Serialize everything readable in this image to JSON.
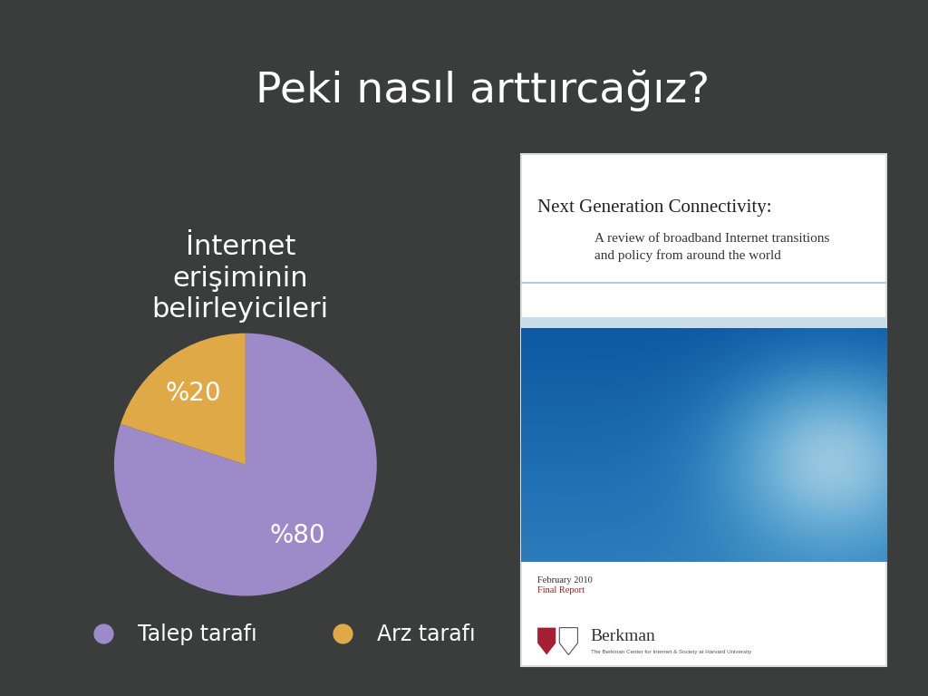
{
  "slide_title": "Peki nasıl arttırcağız?",
  "chart_data": {
    "type": "pie",
    "title": "İnternet\nerişiminin\nbelirleyicileri",
    "categories": [
      "Talep tarafı",
      "Arz tarafı"
    ],
    "values": [
      80,
      20
    ],
    "value_labels": [
      "%80",
      "%20"
    ],
    "colors": [
      "#9d8bc9",
      "#e0a948"
    ],
    "legend": "lower center",
    "data_labels": true
  },
  "report_cover": {
    "title": "Next Generation Connectivity:",
    "subtitle": "A review of broadband Internet transitions\nand policy from around the world",
    "date": "February 2010",
    "status": "Final Report",
    "publisher": "Berkman",
    "publisher_detail": "The Berkman Center for Internet & Society at Harvard University"
  }
}
